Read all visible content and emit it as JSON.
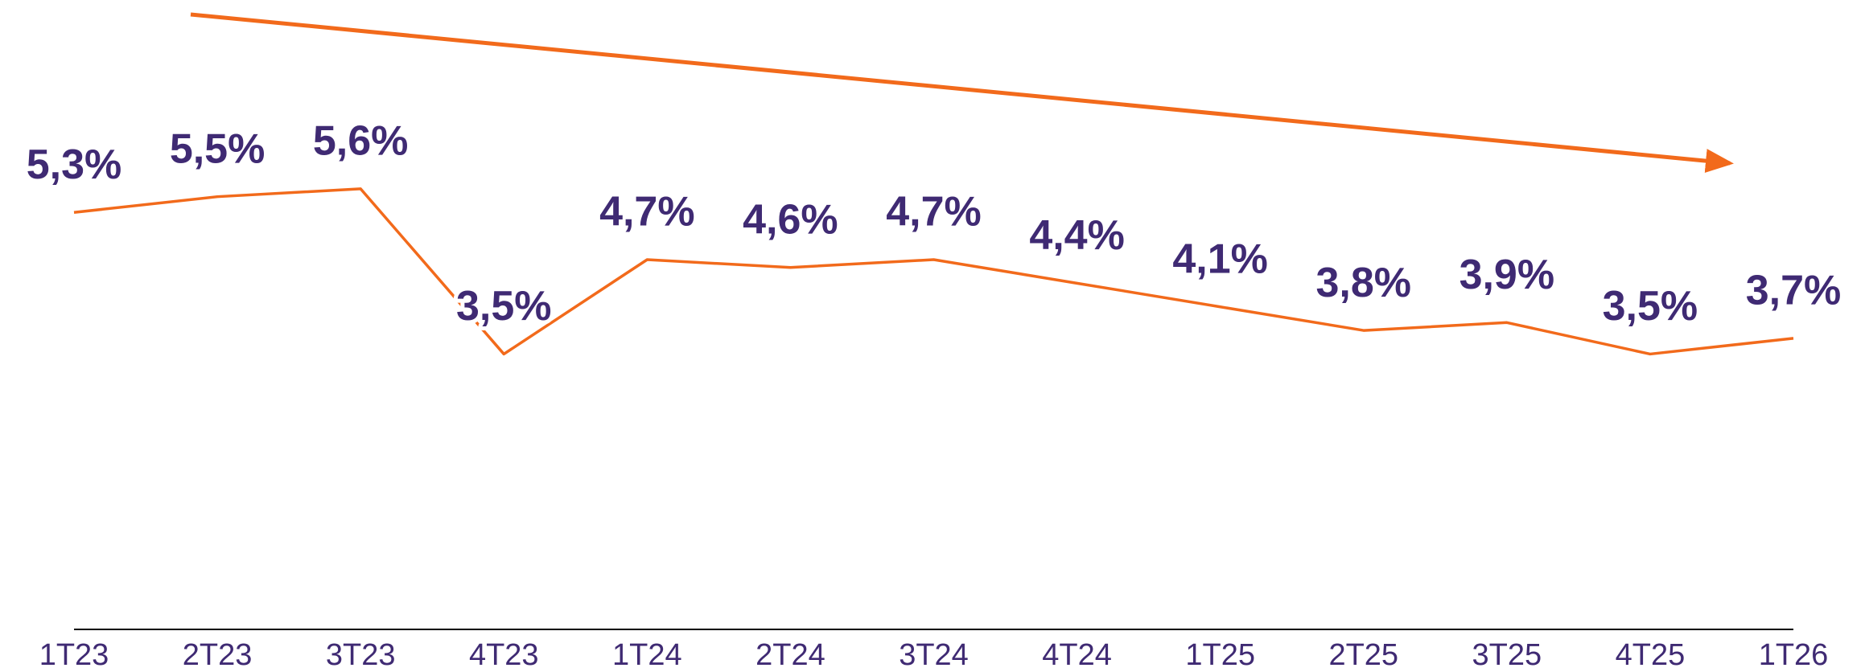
{
  "chart_data": {
    "type": "line",
    "categories": [
      "1T23",
      "2T23",
      "3T23",
      "4T23",
      "1T24",
      "2T24",
      "3T24",
      "4T24",
      "1T25",
      "2T25",
      "3T25",
      "4T25",
      "1T26"
    ],
    "values": [
      5.3,
      5.5,
      5.6,
      3.5,
      4.7,
      4.6,
      4.7,
      4.4,
      4.1,
      3.8,
      3.9,
      3.5,
      3.7
    ],
    "value_labels": [
      "5,3%",
      "5,5%",
      "5,6%",
      "3,5%",
      "4,7%",
      "4,6%",
      "4,7%",
      "4,4%",
      "4,1%",
      "3,8%",
      "3,9%",
      "3,5%",
      "3,7%"
    ],
    "color": "#f26a1b",
    "label_color": "#3f2a73",
    "ylim": [
      0,
      8
    ]
  }
}
